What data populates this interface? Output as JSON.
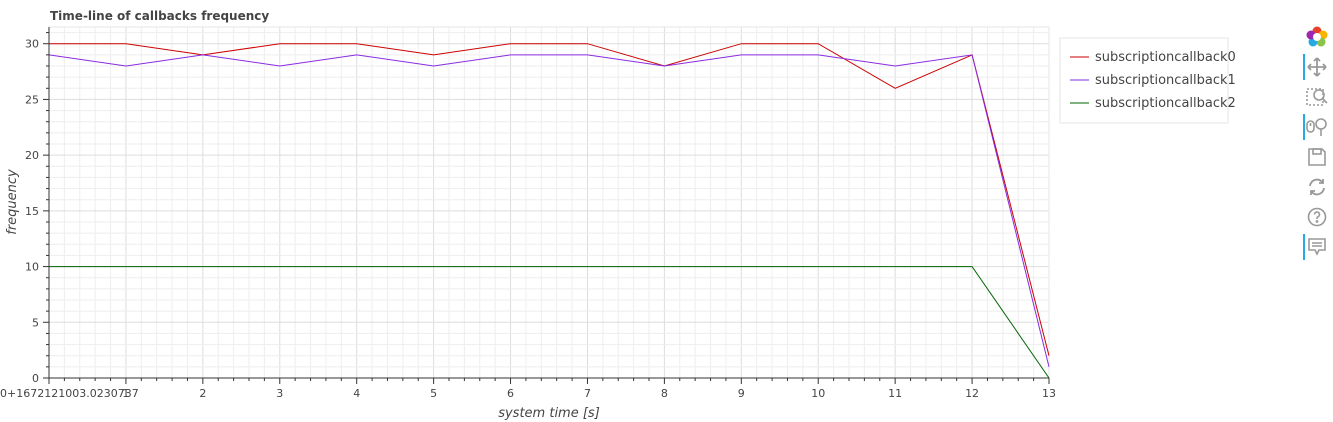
{
  "chart_data": {
    "type": "line",
    "title": "Time-line of callbacks frequency",
    "xlabel": "system time [s]",
    "ylabel": "frequency",
    "x_offset_label": "0+1672121003.0230737",
    "x": [
      0,
      1,
      2,
      3,
      4,
      5,
      6,
      7,
      8,
      9,
      10,
      11,
      12,
      13
    ],
    "xlim": [
      0,
      13
    ],
    "ylim": [
      0,
      31.5
    ],
    "x_ticks": [
      1,
      2,
      3,
      4,
      5,
      6,
      7,
      8,
      9,
      10,
      11,
      12,
      13
    ],
    "y_ticks": [
      0,
      5,
      10,
      15,
      20,
      25,
      30
    ],
    "grid": true,
    "legend_position": "outside-right",
    "series": [
      {
        "name": "subscriptioncallback0",
        "color": "#cc0000",
        "values": [
          30,
          30,
          29,
          30,
          30,
          29,
          30,
          30,
          28,
          30,
          30,
          26,
          29,
          2
        ]
      },
      {
        "name": "subscriptioncallback1",
        "color": "#8a2be2",
        "values": [
          29,
          28,
          29,
          28,
          29,
          28,
          29,
          29,
          28,
          29,
          29,
          28,
          29,
          1
        ]
      },
      {
        "name": "subscriptioncallback2",
        "color": "#006400",
        "values": [
          10,
          10,
          10,
          10,
          10,
          10,
          10,
          10,
          10,
          10,
          10,
          10,
          10,
          0
        ]
      }
    ]
  },
  "toolbar": {
    "tools": [
      {
        "name": "bokeh-logo-icon",
        "active": false
      },
      {
        "name": "pan-icon",
        "active": true
      },
      {
        "name": "box-zoom-icon",
        "active": false
      },
      {
        "name": "wheel-zoom-icon",
        "active": true
      },
      {
        "name": "save-icon",
        "active": false
      },
      {
        "name": "reset-icon",
        "active": false
      },
      {
        "name": "help-icon",
        "active": false
      },
      {
        "name": "hover-icon",
        "active": true
      }
    ]
  }
}
